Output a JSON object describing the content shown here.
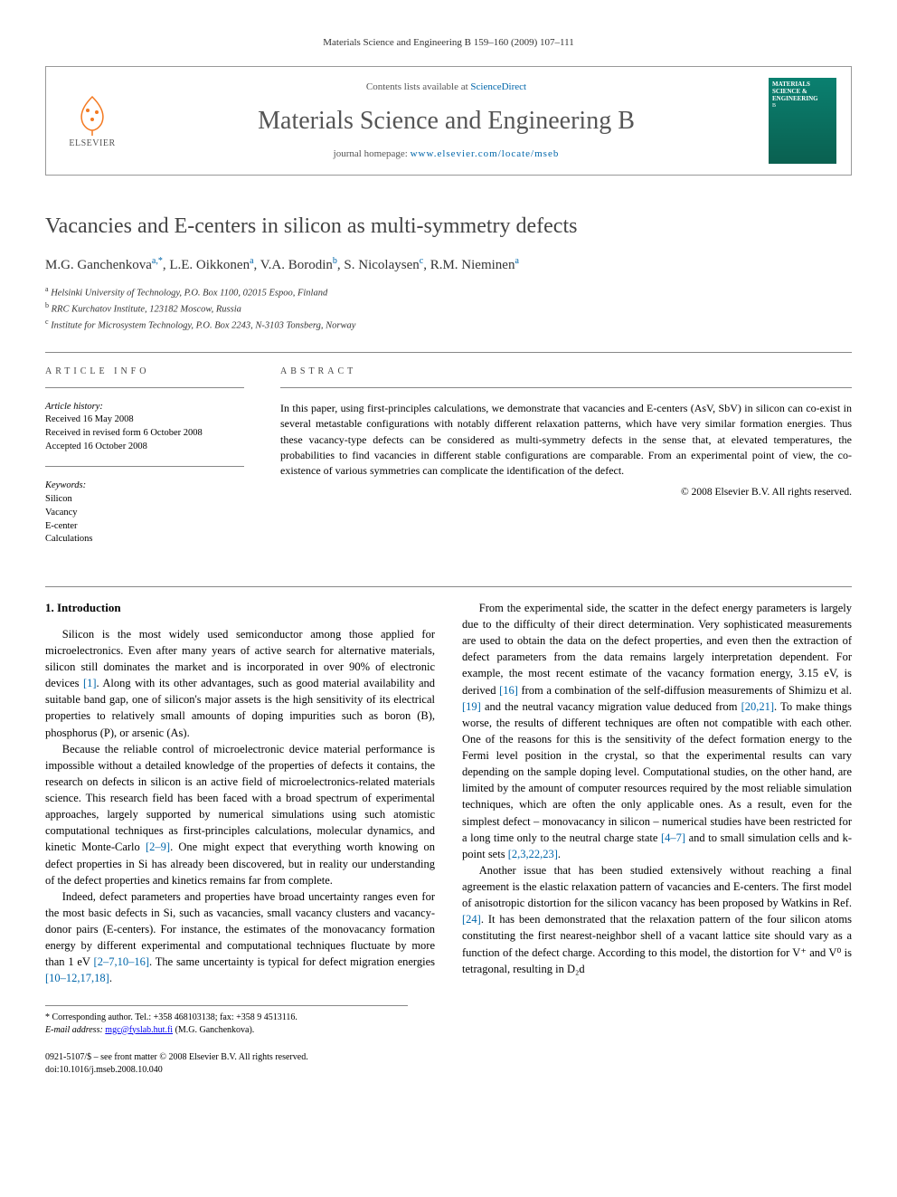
{
  "header_citation": "Materials Science and Engineering B 159–160 (2009) 107–111",
  "publisher_box": {
    "publisher_name": "ELSEVIER",
    "contents_line_prefix": "Contents lists available at ",
    "contents_link_text": "ScienceDirect",
    "journal_title": "Materials Science and Engineering B",
    "homepage_prefix": "journal homepage: ",
    "homepage_url": "www.elsevier.com/locate/mseb",
    "cover_text": "MATERIALS SCIENCE & ENGINEERING",
    "cover_sub": "B"
  },
  "article": {
    "title": "Vacancies and E-centers in silicon as multi-symmetry defects",
    "authors_html_parts": [
      {
        "name": "M.G. Ganchenkova",
        "sup": "a,*"
      },
      {
        "name": "L.E. Oikkonen",
        "sup": "a"
      },
      {
        "name": "V.A. Borodin",
        "sup": "b"
      },
      {
        "name": "S. Nicolaysen",
        "sup": "c"
      },
      {
        "name": "R.M. Nieminen",
        "sup": "a"
      }
    ],
    "affiliations": [
      {
        "sup": "a",
        "text": "Helsinki University of Technology, P.O. Box 1100, 02015 Espoo, Finland"
      },
      {
        "sup": "b",
        "text": "RRC Kurchatov Institute, 123182 Moscow, Russia"
      },
      {
        "sup": "c",
        "text": "Institute for Microsystem Technology, P.O. Box 2243, N-3103 Tonsberg, Norway"
      }
    ]
  },
  "info": {
    "heading_info": "ARTICLE INFO",
    "heading_abstract": "ABSTRACT",
    "history_label": "Article history:",
    "history": [
      "Received 16 May 2008",
      "Received in revised form 6 October 2008",
      "Accepted 16 October 2008"
    ],
    "keywords_label": "Keywords:",
    "keywords": [
      "Silicon",
      "Vacancy",
      "E-center",
      "Calculations"
    ]
  },
  "abstract_text": "In this paper, using first-principles calculations, we demonstrate that vacancies and E-centers (AsV, SbV) in silicon can co-exist in several metastable configurations with notably different relaxation patterns, which have very similar formation energies. Thus these vacancy-type defects can be considered as multi-symmetry defects in the sense that, at elevated temperatures, the probabilities to find vacancies in different stable configurations are comparable. From an experimental point of view, the co-existence of various symmetries can complicate the identification of the defect.",
  "abstract_copyright": "© 2008 Elsevier B.V. All rights reserved.",
  "section1_heading": "1. Introduction",
  "paragraphs": {
    "p1_a": "Silicon is the most widely used semiconductor among those applied for microelectronics. Even after many years of active search for alternative materials, silicon still dominates the market and is incorporated in over 90% of electronic devices ",
    "p1_ref1": "[1]",
    "p1_b": ". Along with its other advantages, such as good material availability and suitable band gap, one of silicon's major assets is the high sensitivity of its electrical properties to relatively small amounts of doping impurities such as boron (B), phosphorus (P), or arsenic (As).",
    "p2_a": "Because the reliable control of microelectronic device material performance is impossible without a detailed knowledge of the properties of defects it contains, the research on defects in silicon is an active field of microelectronics-related materials science. This research field has been faced with a broad spectrum of experimental approaches, largely supported by numerical simulations using such atomistic computational techniques as first-principles calculations, molecular dynamics, and kinetic Monte-Carlo ",
    "p2_ref1": "[2–9]",
    "p2_b": ". One might expect that everything worth knowing on defect properties in Si has already been discovered, but in reality our understanding of the defect properties and kinetics remains far from complete.",
    "p3": "Indeed, defect parameters and properties have broad uncertainty ranges even for the most basic defects in Si, such as vacancies, small vacancy clusters and vacancy-donor pairs (E-centers). For instance, the estimates of the monovacancy formation energy by different experimental and computational techniques fluctuate by",
    "p3_cont_a": "more than 1 eV ",
    "p3_ref1": "[2–7,10–16]",
    "p3_cont_b": ". The same uncertainty is typical for defect migration energies ",
    "p3_ref2": "[10–12,17,18]",
    "p3_cont_c": ".",
    "p4_a": "From the experimental side, the scatter in the defect energy parameters is largely due to the difficulty of their direct determination. Very sophisticated measurements are used to obtain the data on the defect properties, and even then the extraction of defect parameters from the data remains largely interpretation dependent. For example, the most recent estimate of the vacancy formation energy, 3.15 eV, is derived ",
    "p4_ref1": "[16]",
    "p4_b": " from a combination of the self-diffusion measurements of Shimizu et al. ",
    "p4_ref2": "[19]",
    "p4_c": " and the neutral vacancy migration value deduced from ",
    "p4_ref3": "[20,21]",
    "p4_d": ". To make things worse, the results of different techniques are often not compatible with each other. One of the reasons for this is the sensitivity of the defect formation energy to the Fermi level position in the crystal, so that the experimental results can vary depending on the sample doping level. Computational studies, on the other hand, are limited by the amount of computer resources required by the most reliable simulation techniques, which are often the only applicable ones. As a result, even for the simplest defect – monovacancy in silicon – numerical studies have been restricted for a long time only to the neutral charge state ",
    "p4_ref4": "[4–7]",
    "p4_e": " and to small simulation cells and k-point sets ",
    "p4_ref5": "[2,3,22,23]",
    "p4_f": ".",
    "p5_a": "Another issue that has been studied extensively without reaching a final agreement is the elastic relaxation pattern of vacancies and E-centers. The first model of anisotropic distortion for the silicon vacancy has been proposed by Watkins in Ref. ",
    "p5_ref1": "[24]",
    "p5_b": ". It has been demonstrated that the relaxation pattern of the four silicon atoms constituting the first nearest-neighbor shell of a vacant lattice site should vary as a function of the defect charge. According to this model, the distortion for V⁺ and V⁰ is tetragonal, resulting in D₂d"
  },
  "footnote": {
    "corresponding": "* Corresponding author. Tel.: +358 468103138; fax: +358 9 4513116.",
    "email_label": "E-mail address:",
    "email": "mgc@fyslab.hut.fi",
    "email_suffix": " (M.G. Ganchenkova)."
  },
  "bottom": {
    "issn_line": "0921-5107/$ – see front matter © 2008 Elsevier B.V. All rights reserved.",
    "doi_line": "doi:10.1016/j.mseb.2008.10.040"
  },
  "colors": {
    "link": "#0066aa",
    "publisher_orange": "#f47920",
    "cover_bg": "#0a8070"
  }
}
